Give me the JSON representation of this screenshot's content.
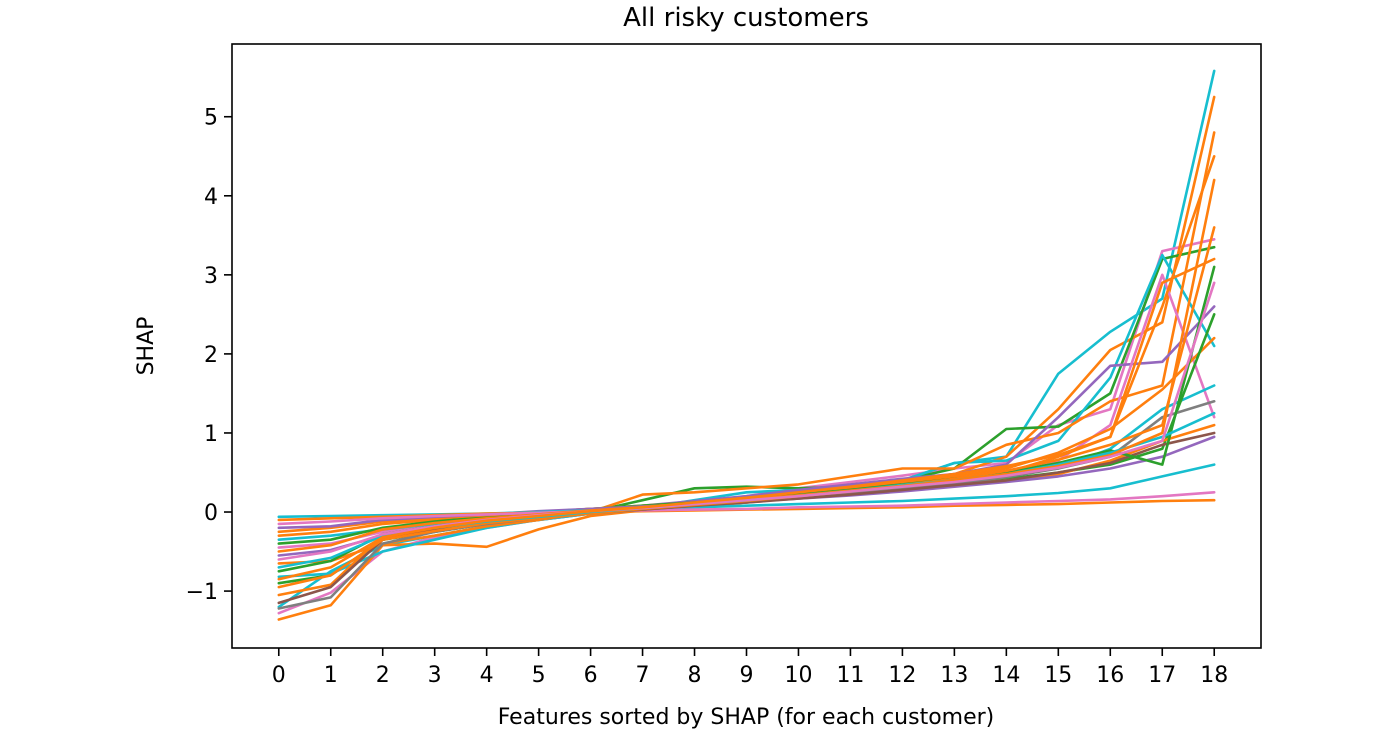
{
  "chart_data": {
    "type": "line",
    "title": "All risky customers",
    "xlabel": "Features sorted by SHAP (for each customer)",
    "ylabel": "SHAP",
    "x": [
      0,
      1,
      2,
      3,
      4,
      5,
      6,
      7,
      8,
      9,
      10,
      11,
      12,
      13,
      14,
      15,
      16,
      17,
      18
    ],
    "xticks": [
      "0",
      "1",
      "2",
      "3",
      "4",
      "5",
      "6",
      "7",
      "8",
      "9",
      "10",
      "11",
      "12",
      "13",
      "14",
      "15",
      "16",
      "17",
      "18"
    ],
    "yticks": [
      -1,
      0,
      1,
      2,
      3,
      4,
      5
    ],
    "ytick_labels": [
      "−1",
      "0",
      "1",
      "2",
      "3",
      "4",
      "5"
    ],
    "xlim": [
      -0.9,
      18.9
    ],
    "ylim": [
      -1.72,
      5.92
    ],
    "grid": false,
    "legend": "none",
    "colors": [
      "#1f77b4",
      "#ff7f0e",
      "#2ca02c",
      "#d62728",
      "#9467bd",
      "#8c564b",
      "#e377c2",
      "#7f7f7f",
      "#bcbd22",
      "#17becf"
    ],
    "series": [
      {
        "color": "#17becf",
        "values": [
          -1.2,
          -0.75,
          -0.42,
          -0.3,
          -0.18,
          -0.1,
          -0.02,
          0.04,
          0.1,
          0.16,
          0.22,
          0.28,
          0.4,
          0.62,
          0.7,
          1.75,
          2.28,
          2.7,
          5.58
        ]
      },
      {
        "color": "#e377c2",
        "values": [
          -1.28,
          -1.02,
          -0.5,
          -0.32,
          -0.2,
          -0.1,
          -0.02,
          0.05,
          0.12,
          0.2,
          0.3,
          0.38,
          0.46,
          0.55,
          0.62,
          1.1,
          1.3,
          3.3,
          3.45
        ]
      },
      {
        "color": "#ff7f0e",
        "values": [
          -1.36,
          -1.18,
          -0.42,
          -0.4,
          -0.44,
          -0.22,
          -0.05,
          0.02,
          0.06,
          0.12,
          0.2,
          0.3,
          0.4,
          0.48,
          0.7,
          1.3,
          2.05,
          2.4,
          5.25
        ]
      },
      {
        "color": "#2ca02c",
        "values": [
          -0.9,
          -0.8,
          -0.35,
          -0.25,
          -0.15,
          -0.08,
          0.0,
          0.15,
          0.3,
          0.32,
          0.3,
          0.32,
          0.4,
          0.55,
          1.05,
          1.08,
          1.5,
          3.2,
          3.35
        ]
      },
      {
        "color": "#17becf",
        "values": [
          -0.82,
          -0.78,
          -0.5,
          -0.35,
          -0.2,
          -0.1,
          -0.02,
          0.05,
          0.15,
          0.25,
          0.28,
          0.3,
          0.4,
          0.62,
          0.65,
          0.9,
          1.7,
          3.25,
          2.1
        ]
      },
      {
        "color": "#ff7f0e",
        "values": [
          -0.65,
          -0.62,
          -0.4,
          -0.3,
          -0.18,
          -0.1,
          0.0,
          0.22,
          0.25,
          0.3,
          0.35,
          0.45,
          0.55,
          0.55,
          0.85,
          1.0,
          1.4,
          1.6,
          4.8
        ]
      },
      {
        "color": "#9467bd",
        "values": [
          -0.55,
          -0.48,
          -0.3,
          -0.22,
          -0.12,
          -0.05,
          0.02,
          0.08,
          0.14,
          0.2,
          0.28,
          0.35,
          0.42,
          0.48,
          0.6,
          1.2,
          1.85,
          1.9,
          2.6
        ]
      },
      {
        "color": "#e377c2",
        "values": [
          -0.45,
          -0.4,
          -0.25,
          -0.18,
          -0.1,
          -0.05,
          0.02,
          0.06,
          0.1,
          0.16,
          0.22,
          0.3,
          0.38,
          0.45,
          0.52,
          0.65,
          1.1,
          3.0,
          1.2
        ]
      },
      {
        "color": "#ff7f0e",
        "values": [
          -1.05,
          -0.92,
          -0.3,
          -0.2,
          -0.12,
          -0.06,
          0.0,
          0.05,
          0.1,
          0.15,
          0.2,
          0.26,
          0.35,
          0.42,
          0.5,
          0.7,
          0.95,
          2.9,
          3.2
        ]
      },
      {
        "color": "#17becf",
        "values": [
          -0.35,
          -0.3,
          -0.22,
          -0.15,
          -0.08,
          -0.03,
          0.02,
          0.06,
          0.1,
          0.14,
          0.2,
          0.26,
          0.32,
          0.38,
          0.46,
          0.55,
          0.8,
          1.3,
          1.6
        ]
      },
      {
        "color": "#ff7f0e",
        "values": [
          -0.3,
          -0.25,
          -0.15,
          -0.1,
          -0.05,
          0.0,
          0.04,
          0.08,
          0.12,
          0.18,
          0.24,
          0.3,
          0.38,
          0.45,
          0.55,
          0.75,
          1.05,
          1.55,
          2.2
        ]
      },
      {
        "color": "#2ca02c",
        "values": [
          -0.4,
          -0.35,
          -0.2,
          -0.12,
          -0.06,
          0.0,
          0.04,
          0.08,
          0.12,
          0.16,
          0.2,
          0.24,
          0.3,
          0.36,
          0.42,
          0.5,
          0.6,
          0.8,
          2.5
        ]
      },
      {
        "color": "#ff7f0e",
        "values": [
          -0.25,
          -0.2,
          -0.12,
          -0.08,
          -0.04,
          0.0,
          0.04,
          0.07,
          0.1,
          0.14,
          0.18,
          0.22,
          0.28,
          0.34,
          0.4,
          0.48,
          0.65,
          0.9,
          1.1
        ]
      },
      {
        "color": "#9467bd",
        "values": [
          -0.2,
          -0.18,
          -0.1,
          -0.06,
          -0.03,
          0.01,
          0.04,
          0.07,
          0.1,
          0.13,
          0.17,
          0.21,
          0.26,
          0.32,
          0.38,
          0.45,
          0.55,
          0.7,
          0.95
        ]
      },
      {
        "color": "#17becf",
        "values": [
          -0.06,
          -0.05,
          -0.04,
          -0.03,
          -0.02,
          0.0,
          0.02,
          0.04,
          0.06,
          0.08,
          0.1,
          0.12,
          0.14,
          0.17,
          0.2,
          0.24,
          0.3,
          0.45,
          0.6
        ]
      },
      {
        "color": "#ff7f0e",
        "values": [
          -0.1,
          -0.08,
          -0.06,
          -0.04,
          -0.02,
          -0.01,
          0.0,
          0.01,
          0.02,
          0.03,
          0.04,
          0.05,
          0.06,
          0.08,
          0.09,
          0.1,
          0.12,
          0.14,
          0.15
        ]
      },
      {
        "color": "#e377c2",
        "values": [
          -0.15,
          -0.12,
          -0.08,
          -0.05,
          -0.03,
          -0.01,
          0.01,
          0.02,
          0.03,
          0.04,
          0.06,
          0.07,
          0.08,
          0.1,
          0.12,
          0.14,
          0.16,
          0.2,
          0.25
        ]
      },
      {
        "color": "#7f7f7f",
        "values": [
          -1.22,
          -1.08,
          -0.4,
          -0.25,
          -0.15,
          -0.08,
          -0.02,
          0.03,
          0.08,
          0.12,
          0.18,
          0.24,
          0.3,
          0.36,
          0.44,
          0.55,
          0.7,
          1.2,
          1.4
        ]
      },
      {
        "color": "#8c564b",
        "values": [
          -1.15,
          -0.95,
          -0.35,
          -0.22,
          -0.13,
          -0.07,
          -0.01,
          0.03,
          0.08,
          0.12,
          0.17,
          0.22,
          0.28,
          0.34,
          0.4,
          0.5,
          0.62,
          0.85,
          1.0
        ]
      },
      {
        "color": "#2ca02c",
        "values": [
          -0.75,
          -0.62,
          -0.28,
          -0.18,
          -0.1,
          -0.05,
          0.01,
          0.05,
          0.1,
          0.16,
          0.22,
          0.28,
          0.35,
          0.42,
          0.5,
          0.62,
          0.78,
          0.6,
          3.1
        ]
      },
      {
        "color": "#ff7f0e",
        "values": [
          -0.95,
          -0.8,
          -0.35,
          -0.24,
          -0.14,
          -0.08,
          -0.02,
          0.04,
          0.09,
          0.14,
          0.2,
          0.26,
          0.34,
          0.42,
          0.52,
          0.66,
          0.85,
          1.1,
          3.6
        ]
      },
      {
        "color": "#17becf",
        "values": [
          -0.7,
          -0.58,
          -0.3,
          -0.2,
          -0.12,
          -0.06,
          0.0,
          0.05,
          0.1,
          0.15,
          0.21,
          0.27,
          0.34,
          0.4,
          0.48,
          0.6,
          0.75,
          0.95,
          1.25
        ]
      },
      {
        "color": "#ff7f0e",
        "values": [
          -0.5,
          -0.42,
          -0.22,
          -0.14,
          -0.08,
          -0.03,
          0.02,
          0.06,
          0.11,
          0.16,
          0.21,
          0.27,
          0.33,
          0.4,
          0.48,
          0.58,
          0.72,
          1.0,
          4.2
        ]
      },
      {
        "color": "#e377c2",
        "values": [
          -0.6,
          -0.5,
          -0.28,
          -0.18,
          -0.1,
          -0.04,
          0.01,
          0.05,
          0.1,
          0.15,
          0.2,
          0.26,
          0.32,
          0.38,
          0.46,
          0.56,
          0.7,
          0.9,
          2.9
        ]
      },
      {
        "color": "#ff7f0e",
        "values": [
          -0.85,
          -0.7,
          -0.32,
          -0.2,
          -0.11,
          -0.05,
          0.01,
          0.06,
          0.12,
          0.18,
          0.25,
          0.32,
          0.4,
          0.48,
          0.58,
          0.72,
          0.95,
          2.6,
          4.5
        ]
      }
    ]
  }
}
